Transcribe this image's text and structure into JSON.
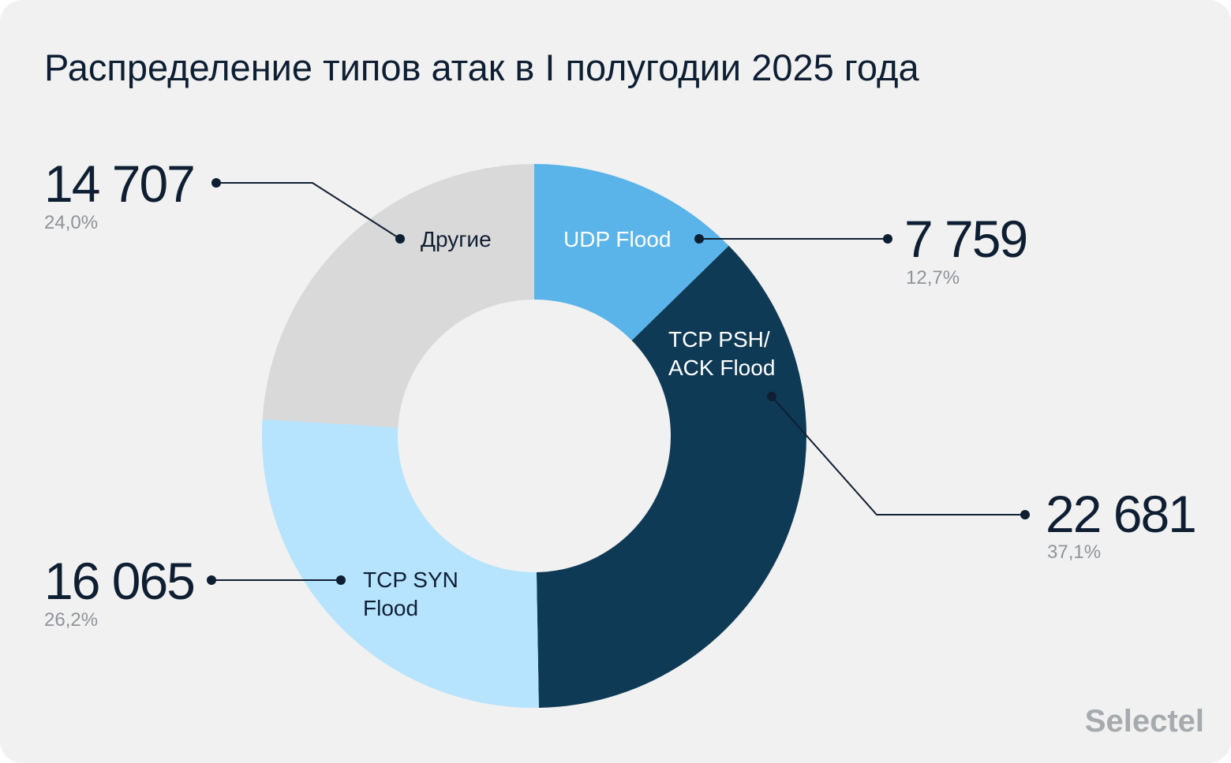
{
  "chart_data": {
    "type": "pie",
    "title": "Распределение типов атак в I полугодии 2025 года",
    "categories": [
      "UDP Flood",
      "TCP PSH/ ACK Flood",
      "TCP SYN Flood",
      "Другие"
    ],
    "values": [
      7759,
      22681,
      16065,
      14707
    ],
    "value_labels": [
      "7 759",
      "22 681",
      "16 065",
      "14 707"
    ],
    "percent_labels": [
      "12,7%",
      "37,1%",
      "26,2%",
      "24,0%"
    ],
    "slice_label_lines": [
      [
        "UDP Flood"
      ],
      [
        "TCP PSH/",
        "ACK Flood"
      ],
      [
        "TCP SYN",
        "Flood"
      ],
      [
        "Другие"
      ]
    ],
    "colors": [
      "#5ab4e9",
      "#0f3a56",
      "#b6e3fd",
      "#d9d9d9"
    ],
    "label_colors": [
      "#ffffff",
      "#ffffff",
      "#0f1f33",
      "#0f1f33"
    ],
    "donut": true,
    "start_angle": "12 o'clock",
    "direction": "clockwise",
    "legend": "none"
  },
  "brand": {
    "name": "Selectel"
  },
  "colors": {
    "background": "#f1f1f1",
    "text": "#0f1f33",
    "muted": "#8f9499",
    "leader": "#0f1f33"
  }
}
